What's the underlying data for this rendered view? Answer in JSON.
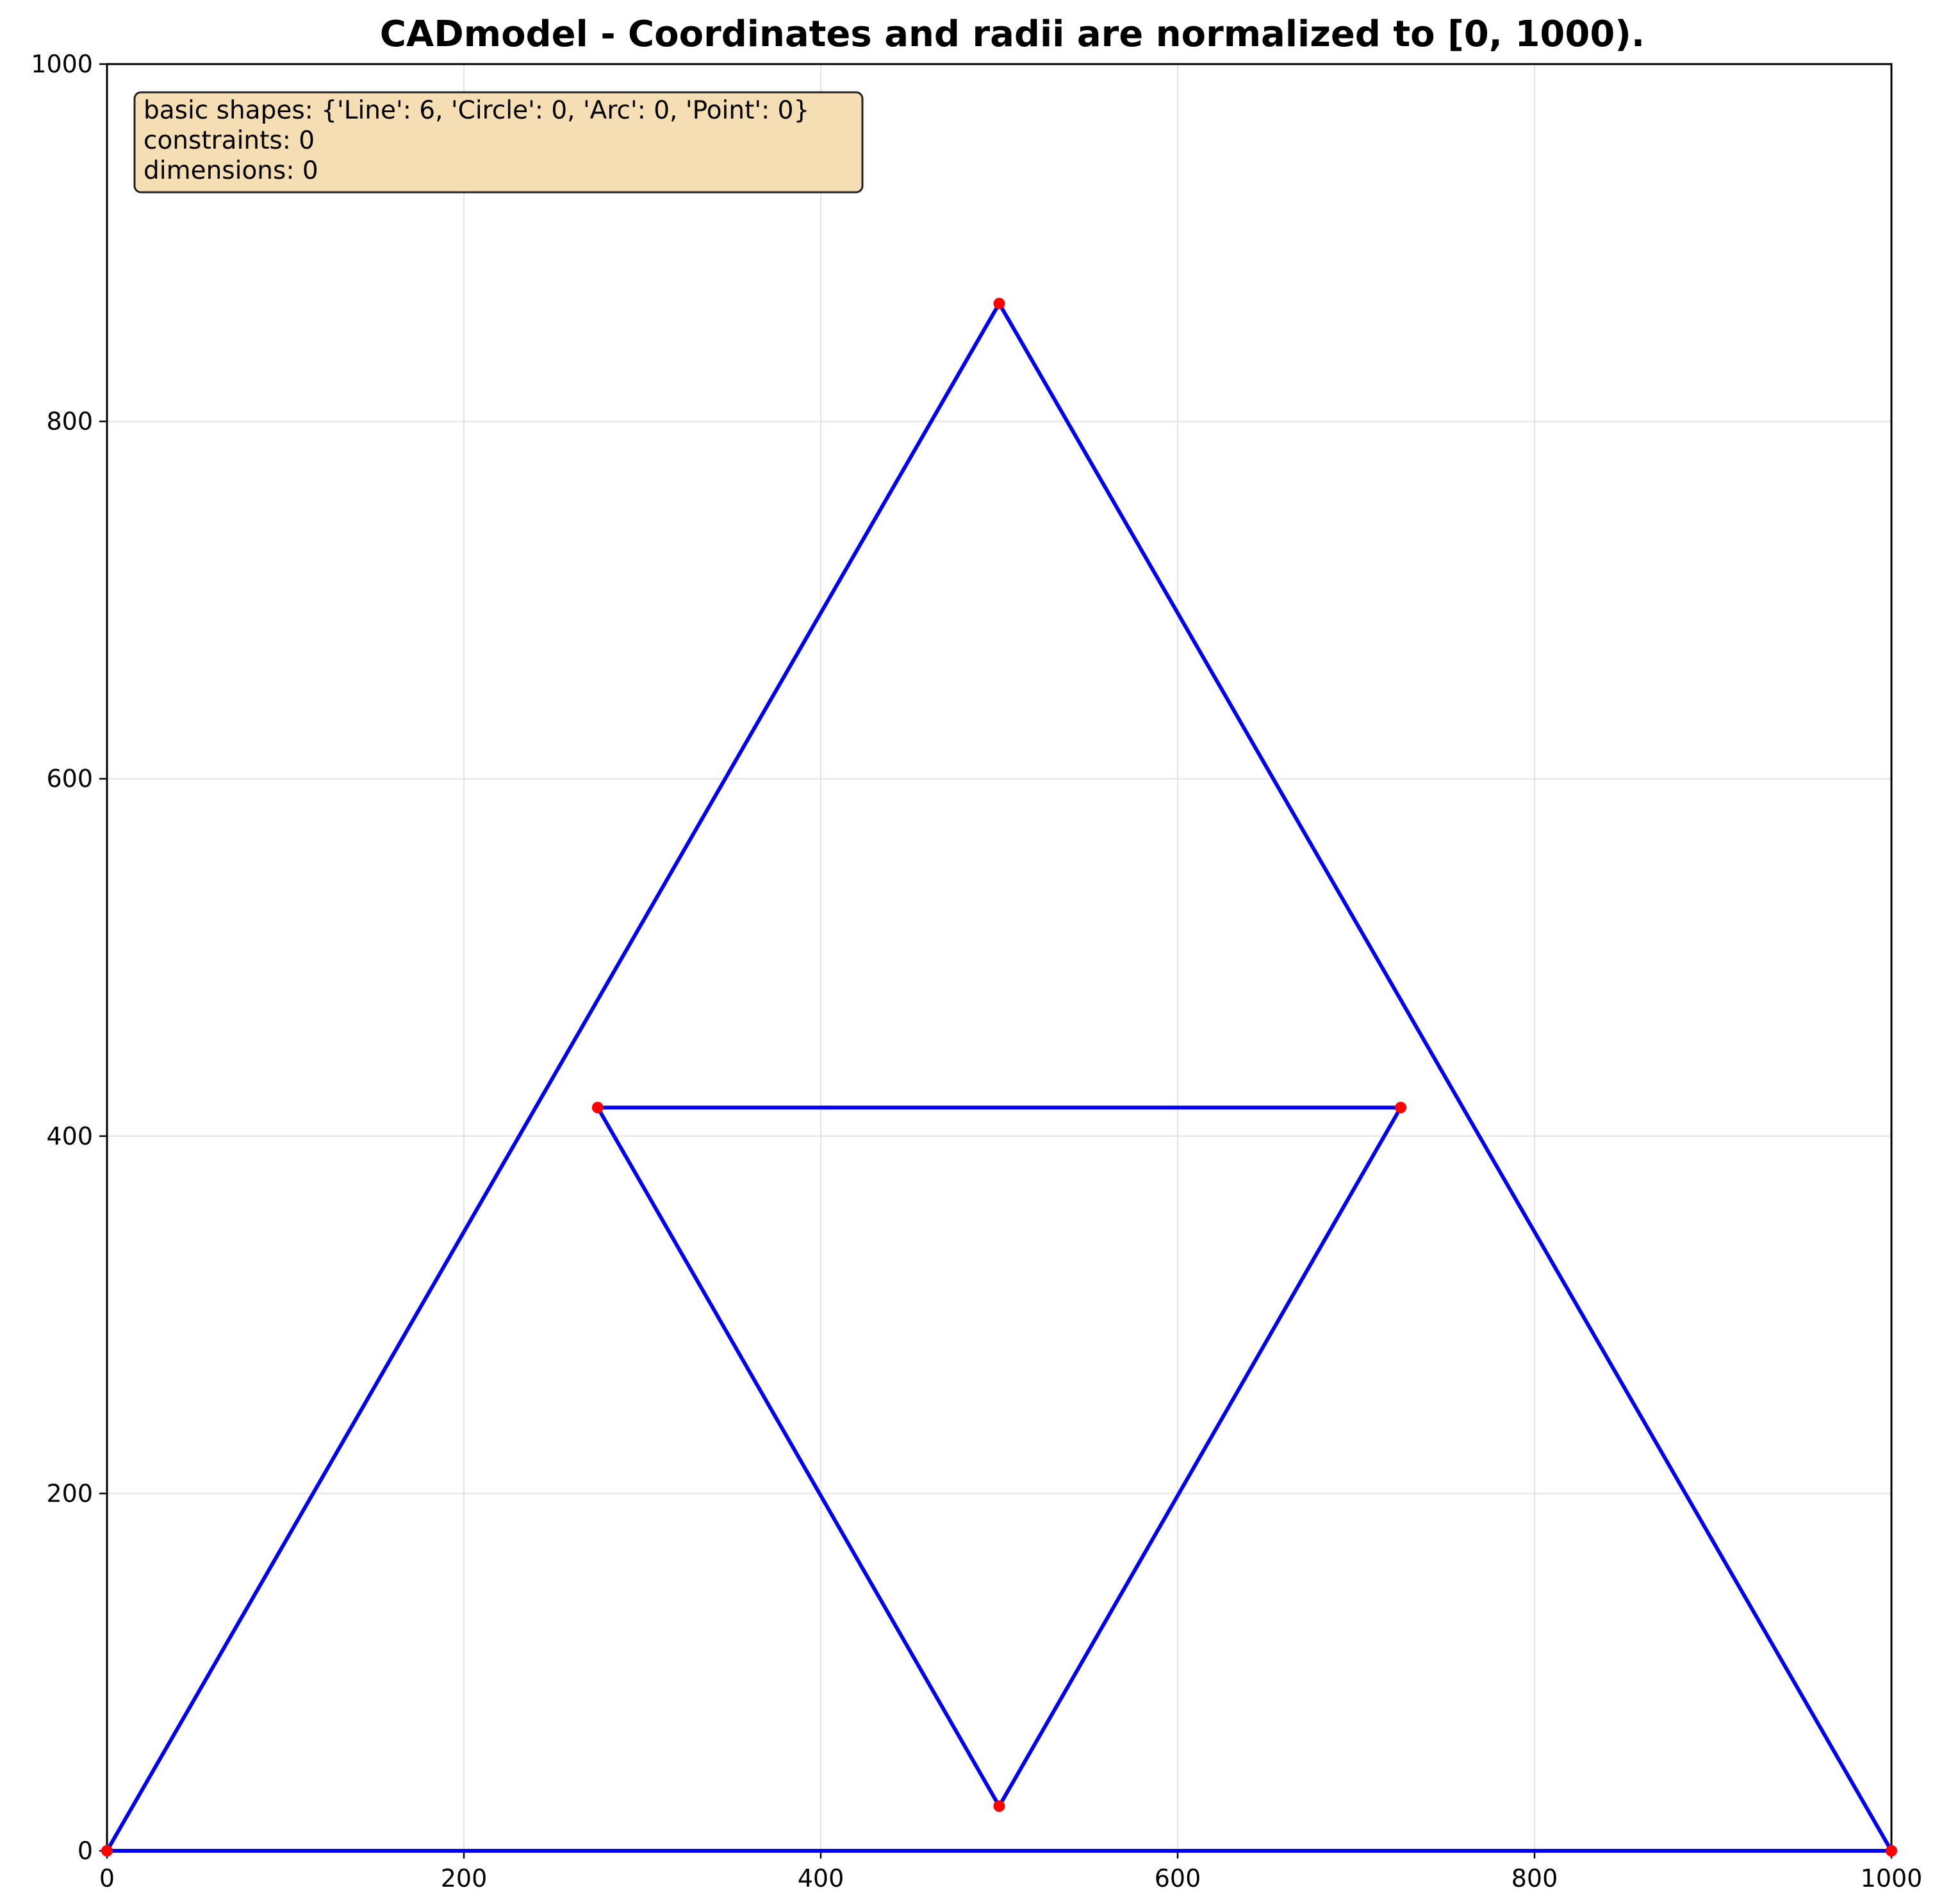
{
  "title": "CADmodel - Coordinates and radii are normalized to [0, 1000).",
  "info_box": {
    "lines": [
      "basic shapes: {'Line': 6, 'Circle': 0, 'Arc': 0, 'Point': 0}",
      "constraints: 0",
      "dimensions: 0"
    ]
  },
  "colors": {
    "line": "#0000ee",
    "endpoint": "#ff0000",
    "grid": "#e3e3e3",
    "info_box_fill": "#f5deb3"
  },
  "chart_data": {
    "type": "line",
    "xlim": [
      0,
      1000
    ],
    "ylim": [
      0,
      1000
    ],
    "x_ticks": [
      0,
      200,
      400,
      600,
      800,
      1000
    ],
    "y_ticks": [
      0,
      200,
      400,
      600,
      800,
      1000
    ],
    "x_tick_labels": [
      "0",
      "200",
      "400",
      "600",
      "800",
      "1000"
    ],
    "y_tick_labels": [
      "0",
      "200",
      "400",
      "600",
      "800",
      "1000"
    ],
    "grid": true,
    "segments": [
      {
        "x1": 0,
        "y1": 0,
        "x2": 500,
        "y2": 866
      },
      {
        "x1": 500,
        "y1": 866,
        "x2": 1000,
        "y2": 0
      },
      {
        "x1": 0,
        "y1": 0,
        "x2": 1000,
        "y2": 0
      },
      {
        "x1": 275,
        "y1": 416,
        "x2": 725,
        "y2": 416
      },
      {
        "x1": 275,
        "y1": 416,
        "x2": 500,
        "y2": 25
      },
      {
        "x1": 500,
        "y1": 25,
        "x2": 725,
        "y2": 416
      }
    ]
  }
}
